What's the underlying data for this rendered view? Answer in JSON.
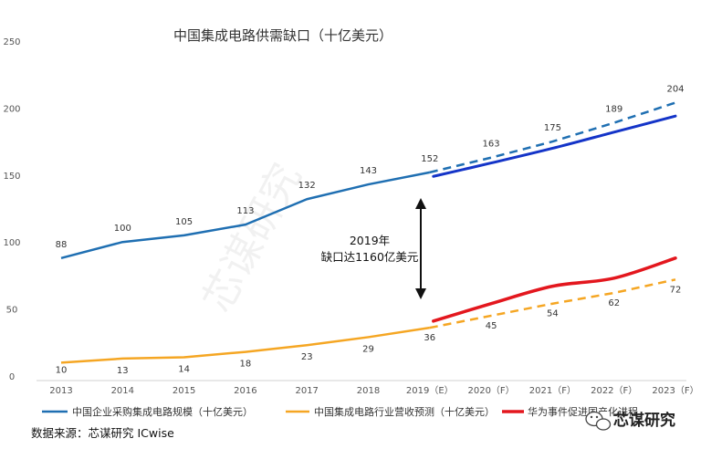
{
  "chart_data": {
    "type": "line",
    "title": "中国集成电路供需缺口（十亿美元）",
    "categories": [
      "2013",
      "2014",
      "2015",
      "2016",
      "2017",
      "2018",
      "2019（E）",
      "2020（F）",
      "2021（F）",
      "2022（F）",
      "2023（F）"
    ],
    "ylim": [
      0,
      250
    ],
    "yticks": [
      0,
      50,
      100,
      150,
      200,
      250
    ],
    "series": [
      {
        "name": "中国企业采购集成电路规模（十亿美元）",
        "color": "#1f6fb2",
        "values": [
          88,
          100,
          105,
          113,
          132,
          143,
          152,
          163,
          175,
          189,
          204
        ],
        "labels": [
          "88",
          "100",
          "105",
          "113",
          "132",
          "143",
          "152",
          "163",
          "175",
          "189",
          "204"
        ]
      },
      {
        "name": "中国集成电路行业营收预测（十亿美元）",
        "color": "#f5a623",
        "values": [
          10,
          13,
          14,
          18,
          23,
          29,
          36,
          45,
          54,
          62,
          72
        ],
        "labels": [
          "10",
          "13",
          "14",
          "18",
          "23",
          "29",
          "36",
          "45",
          "54",
          "62",
          "72"
        ]
      },
      {
        "name": "华为事件促进国产化进程",
        "color": "#e3171e",
        "values": [
          null,
          null,
          null,
          null,
          null,
          null,
          41,
          54,
          67,
          73,
          88
        ]
      },
      {
        "name": "",
        "color": "#1434c8",
        "values": [
          null,
          null,
          null,
          null,
          null,
          null,
          149,
          159,
          170,
          182,
          194
        ]
      }
    ],
    "annotation": "2019年 缺口达1160亿美元",
    "annotation_lines": [
      "2019年",
      "缺口达1160亿美元"
    ]
  },
  "source": "数据来源：芯谋研究 ICwise",
  "watermark": "芯谋研究",
  "logo": {
    "text": "芯谋研究",
    "icon": "wechat-icon"
  }
}
